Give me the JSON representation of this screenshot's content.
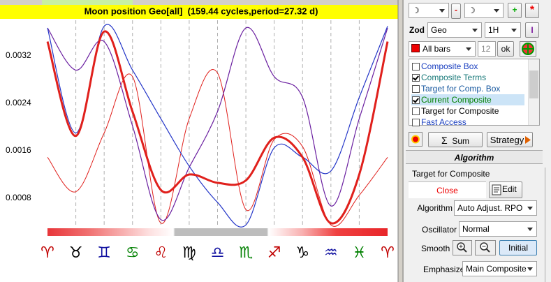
{
  "chart_data": {
    "type": "line",
    "title": "Moon position Geo[all]  (159.44 cycles,period=27.32 d)",
    "categories": [
      "♈",
      "♉",
      "♊",
      "♋",
      "♌",
      "♍",
      "♎",
      "♏",
      "♐",
      "♑",
      "♒",
      "♓",
      "♈"
    ],
    "ylim": [
      0.0002,
      0.0038
    ],
    "yticks": [
      0.0008,
      0.0016,
      0.0024,
      0.0032
    ],
    "grid": "vertical",
    "series": [
      {
        "color": "#e0201c",
        "line_width": 1,
        "values": [
          0.00149,
          0.00091,
          0.0019,
          0.00285,
          0.00038,
          0.00214,
          0.00291,
          0.00061,
          0.00179,
          0.00167,
          0.00035,
          0.00085,
          0.00149
        ]
      },
      {
        "color": "#6a1fa0",
        "line_width": 1.2,
        "values": [
          0.00367,
          0.00296,
          0.00344,
          0.00202,
          0.00044,
          0.00132,
          0.00226,
          0.00367,
          0.00285,
          0.0025,
          0.00067,
          0.00214,
          0.00367
        ]
      },
      {
        "color": "#2436c8",
        "line_width": 1.2,
        "values": [
          0.00367,
          0.0019,
          0.0037,
          0.00296,
          0.00214,
          0.00134,
          0.00073,
          0.00035,
          0.00165,
          0.00149,
          0.00126,
          0.0025,
          0.0037
        ]
      },
      {
        "color": "#e0201c",
        "line_width": 3,
        "values": [
          0.00344,
          0.00185,
          0.00361,
          0.00226,
          0.00094,
          0.0012,
          0.00106,
          0.0011,
          0.00182,
          0.00149,
          0.00038,
          0.0012,
          0.00344
        ]
      }
    ]
  },
  "panel": {
    "row1": {
      "left": "☽",
      "minus": "-",
      "right": "☽",
      "plus": "+",
      "star": "*"
    },
    "zod": {
      "label": "Zod",
      "frame": "Geo",
      "interval": "1H",
      "button": "I"
    },
    "bars": {
      "select": "All bars",
      "count": 12,
      "ok": "ok"
    },
    "list": [
      {
        "label": "Composite Box",
        "checked": false
      },
      {
        "label": "Composite Terms",
        "checked": true
      },
      {
        "label": "Target for Comp. Box",
        "checked": false
      },
      {
        "label": "Current Composite",
        "checked": true
      },
      {
        "label": "Target for Composite",
        "checked": false
      },
      {
        "label": "Fast Access",
        "checked": false
      }
    ],
    "sigma": "Σ",
    "sum": "Sum",
    "strategy": "Strategy",
    "algorithm_header": "Algorithm",
    "target": "Target for Composite",
    "close": "Close",
    "edit": "Edit",
    "fields": [
      {
        "label": "Algorithm",
        "value": "Auto Adjust. RPO"
      },
      {
        "label": "Oscillator",
        "value": "Normal"
      }
    ],
    "smooth": {
      "label": "Smooth",
      "initial": "Initial"
    },
    "emphasize": {
      "label": "Emphasize",
      "value": "Main Composite"
    }
  }
}
